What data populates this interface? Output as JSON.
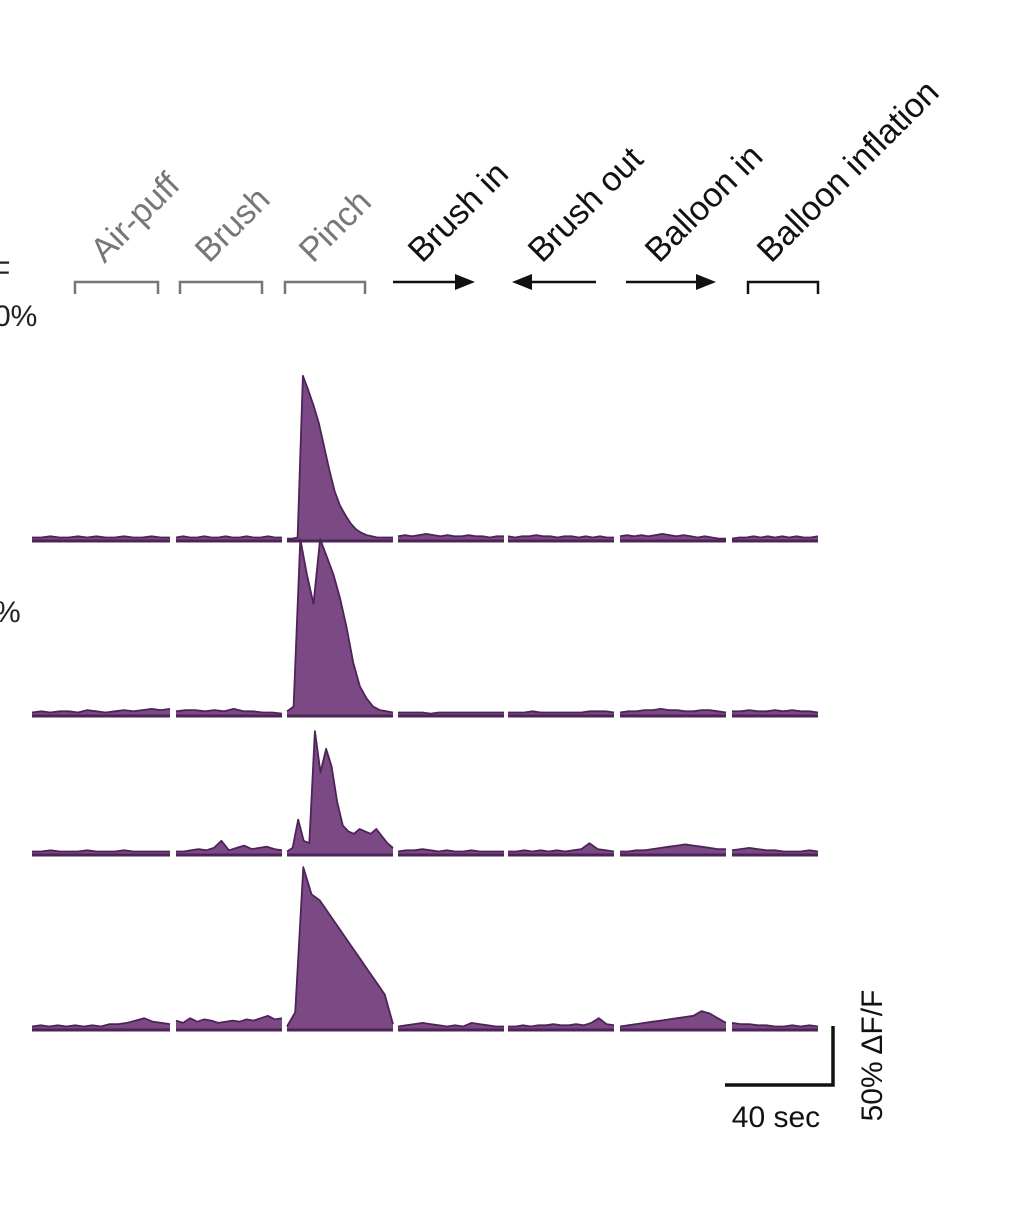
{
  "chart_data": {
    "type": "area",
    "colors": {
      "trace": "#7b4a85",
      "trace_edge": "#4e2357",
      "gray_label": "#777777",
      "black_label": "#111111"
    },
    "stimuli": [
      {
        "label": "Air-puff",
        "marker": "bracket",
        "style": "gray"
      },
      {
        "label": "Brush",
        "marker": "bracket",
        "style": "gray"
      },
      {
        "label": "Pinch",
        "marker": "bracket",
        "style": "gray"
      },
      {
        "label": "Brush in",
        "marker": "arrow-right",
        "style": "black"
      },
      {
        "label": "Brush out",
        "marker": "arrow-left",
        "style": "black"
      },
      {
        "label": "Balloon in",
        "marker": "arrow-right",
        "style": "black"
      },
      {
        "label": "Balloon inflation",
        "marker": "bracket",
        "style": "black"
      }
    ],
    "edge_text": [
      "F",
      "0%",
      "%"
    ],
    "units": {
      "x": "sec",
      "y": "ΔF/F (%)"
    },
    "segment_duration_sec": 56,
    "traces": [
      {
        "segments": [
          [
            3,
            3,
            4,
            3,
            3,
            4,
            3,
            4,
            3,
            3,
            4,
            3,
            3,
            4,
            3,
            3
          ],
          [
            3,
            4,
            3,
            3,
            4,
            3,
            3,
            4,
            3,
            3,
            4,
            3,
            3,
            4,
            3,
            3
          ],
          [
            2,
            2,
            3,
            140,
            128,
            115,
            100,
            80,
            60,
            42,
            30,
            22,
            15,
            10,
            7,
            5,
            4,
            3,
            3,
            3,
            3
          ],
          [
            4,
            5,
            4,
            5,
            6,
            5,
            4,
            5,
            4,
            4,
            5,
            4,
            4,
            3,
            4,
            4
          ],
          [
            4,
            3,
            4,
            4,
            5,
            4,
            4,
            3,
            4,
            4,
            3,
            4,
            3,
            4,
            3,
            3
          ],
          [
            4,
            5,
            4,
            5,
            4,
            5,
            6,
            5,
            4,
            5,
            4,
            3,
            4,
            3,
            2,
            2
          ],
          [
            2,
            3,
            3,
            4,
            3,
            4,
            3,
            4,
            3,
            4,
            3,
            3,
            4
          ]
        ]
      },
      {
        "segments": [
          [
            3,
            4,
            3,
            4,
            4,
            3,
            5,
            4,
            3,
            4,
            5,
            4,
            5,
            6,
            5,
            6
          ],
          [
            4,
            5,
            5,
            4,
            5,
            4,
            6,
            4,
            4,
            3,
            3,
            2
          ],
          [
            4,
            8,
            150,
            120,
            95,
            150,
            135,
            120,
            100,
            75,
            45,
            25,
            15,
            8,
            5,
            4,
            3
          ],
          [
            3,
            3,
            3,
            3,
            2,
            3,
            3,
            3,
            3,
            3,
            3,
            3,
            3,
            3
          ],
          [
            3,
            3,
            3,
            4,
            3,
            3,
            3,
            3,
            3,
            3,
            4,
            4,
            4,
            3
          ],
          [
            3,
            4,
            4,
            5,
            5,
            6,
            5,
            5,
            4,
            4,
            5,
            5,
            4,
            3
          ],
          [
            4,
            4,
            5,
            4,
            4,
            5,
            4,
            5,
            4,
            4,
            3
          ]
        ]
      },
      {
        "segments": [
          [
            3,
            3,
            4,
            3,
            3,
            3,
            4,
            3,
            3,
            3,
            4,
            3,
            3,
            3,
            3,
            3
          ],
          [
            3,
            3,
            4,
            5,
            4,
            6,
            12,
            4,
            6,
            8,
            5,
            6,
            7,
            5,
            4
          ],
          [
            3,
            6,
            30,
            12,
            10,
            105,
            70,
            90,
            75,
            45,
            25,
            20,
            18,
            22,
            20,
            18,
            22,
            16,
            10,
            6
          ],
          [
            3,
            4,
            4,
            5,
            4,
            3,
            4,
            3,
            3,
            4,
            3,
            3,
            3,
            3
          ],
          [
            3,
            3,
            4,
            3,
            4,
            3,
            4,
            3,
            4,
            5,
            10,
            5,
            4,
            3
          ],
          [
            3,
            3,
            4,
            4,
            5,
            6,
            7,
            8,
            9,
            8,
            7,
            6,
            5,
            5
          ],
          [
            4,
            5,
            6,
            5,
            4,
            4,
            3,
            3,
            3,
            4,
            3
          ]
        ]
      },
      {
        "segments": [
          [
            3,
            4,
            3,
            4,
            3,
            4,
            3,
            4,
            3,
            5,
            5,
            6,
            8,
            10,
            7,
            6,
            5
          ],
          [
            8,
            6,
            10,
            7,
            9,
            8,
            6,
            7,
            8,
            7,
            9,
            8,
            10,
            12,
            9,
            10
          ],
          [
            3,
            15,
            138,
            115,
            110,
            100,
            90,
            80,
            70,
            60,
            50,
            40,
            30,
            5
          ],
          [
            3,
            4,
            5,
            6,
            5,
            4,
            3,
            4,
            3,
            6,
            5,
            4,
            3,
            3
          ],
          [
            3,
            3,
            4,
            3,
            4,
            4,
            5,
            4,
            4,
            5,
            4,
            6,
            10,
            5,
            4
          ],
          [
            3,
            4,
            5,
            6,
            7,
            8,
            9,
            10,
            11,
            12,
            16,
            14,
            10,
            6
          ],
          [
            6,
            5,
            5,
            4,
            4,
            3,
            3,
            4,
            3,
            4,
            3
          ]
        ]
      }
    ],
    "scale_bars": {
      "x": {
        "value": 40,
        "label": "40 sec"
      },
      "y": {
        "value": 50,
        "label": "50% ΔF/F"
      }
    }
  }
}
